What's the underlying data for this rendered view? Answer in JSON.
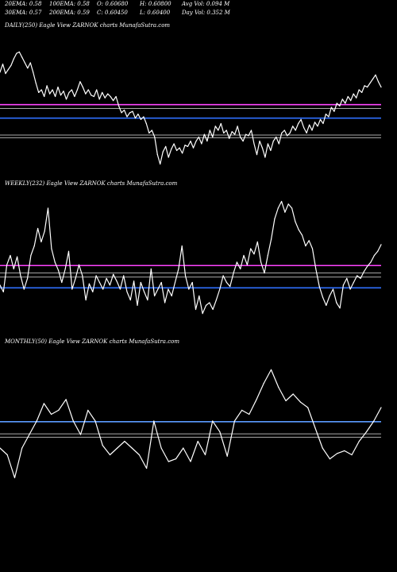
{
  "header": {
    "row1": [
      "20EMA: 0.58",
      "100EMA: 0.58",
      "O: 0.60680",
      "H: 0.60800",
      "Avg Vol: 0.094  M"
    ],
    "row2": [
      "30EMA: 0.57",
      "200EMA: 0.59",
      "C: 0.60450",
      "L: 0.60400",
      "Day Vol: 0.352  M"
    ]
  },
  "chart_data": [
    {
      "type": "line",
      "label": "DAILY(250) Eagle  View  ZARNOK charts MunafaSutra.com",
      "ylim": [
        0,
        1
      ],
      "line_color": "#ffffff",
      "reference_lines": [
        {
          "value": 0.49,
          "color": "#ff44ff"
        },
        {
          "value": 0.462,
          "color": "#aaaaaa"
        },
        {
          "value": 0.39,
          "color": "#2f6fff"
        },
        {
          "value": 0.265,
          "color": "#aaaaaa"
        },
        {
          "value": 0.245,
          "color": "#aaaaaa"
        }
      ],
      "values": [
        0.73,
        0.79,
        0.72,
        0.75,
        0.78,
        0.83,
        0.87,
        0.88,
        0.84,
        0.8,
        0.76,
        0.8,
        0.73,
        0.65,
        0.58,
        0.6,
        0.55,
        0.63,
        0.57,
        0.6,
        0.55,
        0.62,
        0.56,
        0.59,
        0.53,
        0.58,
        0.6,
        0.55,
        0.6,
        0.66,
        0.62,
        0.57,
        0.6,
        0.56,
        0.55,
        0.6,
        0.53,
        0.58,
        0.54,
        0.57,
        0.55,
        0.52,
        0.55,
        0.48,
        0.43,
        0.45,
        0.4,
        0.43,
        0.44,
        0.39,
        0.42,
        0.38,
        0.4,
        0.35,
        0.28,
        0.3,
        0.25,
        0.12,
        0.05,
        0.14,
        0.18,
        0.1,
        0.16,
        0.2,
        0.15,
        0.17,
        0.13,
        0.19,
        0.18,
        0.22,
        0.17,
        0.22,
        0.25,
        0.2,
        0.27,
        0.22,
        0.3,
        0.25,
        0.33,
        0.3,
        0.35,
        0.28,
        0.3,
        0.24,
        0.29,
        0.27,
        0.33,
        0.25,
        0.22,
        0.27,
        0.26,
        0.3,
        0.2,
        0.12,
        0.22,
        0.17,
        0.1,
        0.2,
        0.15,
        0.22,
        0.25,
        0.2,
        0.28,
        0.3,
        0.26,
        0.28,
        0.33,
        0.3,
        0.35,
        0.38,
        0.32,
        0.28,
        0.34,
        0.3,
        0.36,
        0.33,
        0.38,
        0.35,
        0.42,
        0.4,
        0.47,
        0.44,
        0.5,
        0.48,
        0.53,
        0.5,
        0.55,
        0.52,
        0.57,
        0.54,
        0.6,
        0.58,
        0.63,
        0.62,
        0.65,
        0.68,
        0.71,
        0.66,
        0.62
      ]
    },
    {
      "type": "line",
      "label": "WEEKLY(232) Eagle  View  ZARNOK charts MunafaSutra.com",
      "ylim": [
        0,
        1
      ],
      "line_color": "#ffffff",
      "reference_lines": [
        {
          "value": 0.475,
          "color": "#ff44ff"
        },
        {
          "value": 0.42,
          "color": "#aaaaaa"
        },
        {
          "value": 0.39,
          "color": "#aaaaaa"
        },
        {
          "value": 0.31,
          "color": "#2f6fff"
        }
      ],
      "values": [
        0.33,
        0.28,
        0.48,
        0.55,
        0.45,
        0.54,
        0.4,
        0.3,
        0.38,
        0.55,
        0.62,
        0.75,
        0.65,
        0.73,
        0.9,
        0.6,
        0.5,
        0.44,
        0.35,
        0.45,
        0.58,
        0.3,
        0.38,
        0.48,
        0.4,
        0.22,
        0.34,
        0.28,
        0.4,
        0.35,
        0.3,
        0.38,
        0.33,
        0.41,
        0.36,
        0.3,
        0.4,
        0.28,
        0.22,
        0.36,
        0.18,
        0.35,
        0.28,
        0.22,
        0.45,
        0.25,
        0.3,
        0.35,
        0.2,
        0.3,
        0.25,
        0.35,
        0.45,
        0.62,
        0.4,
        0.3,
        0.35,
        0.15,
        0.25,
        0.12,
        0.18,
        0.2,
        0.15,
        0.22,
        0.3,
        0.4,
        0.35,
        0.32,
        0.42,
        0.5,
        0.45,
        0.55,
        0.48,
        0.6,
        0.56,
        0.65,
        0.5,
        0.42,
        0.55,
        0.67,
        0.82,
        0.9,
        0.95,
        0.87,
        0.93,
        0.9,
        0.8,
        0.74,
        0.7,
        0.62,
        0.66,
        0.6,
        0.45,
        0.32,
        0.24,
        0.18,
        0.25,
        0.3,
        0.2,
        0.16,
        0.33,
        0.38,
        0.3,
        0.35,
        0.4,
        0.38,
        0.43,
        0.47,
        0.5,
        0.55,
        0.58,
        0.63
      ]
    },
    {
      "type": "line",
      "label": "MONTHLY(50) Eagle  View  ZARNOK charts MunafaSutra.com",
      "ylim": [
        0,
        1
      ],
      "line_color": "#ffffff",
      "reference_lines": [
        {
          "value": 0.495,
          "color": "#5b9bff"
        },
        {
          "value": 0.405,
          "color": "#aaaaaa"
        },
        {
          "value": 0.38,
          "color": "#aaaaaa"
        }
      ],
      "values": [
        0.3,
        0.25,
        0.08,
        0.3,
        0.4,
        0.5,
        0.63,
        0.55,
        0.58,
        0.66,
        0.5,
        0.4,
        0.58,
        0.5,
        0.32,
        0.25,
        0.3,
        0.35,
        0.3,
        0.25,
        0.15,
        0.5,
        0.3,
        0.2,
        0.22,
        0.3,
        0.2,
        0.35,
        0.25,
        0.5,
        0.42,
        0.24,
        0.5,
        0.58,
        0.55,
        0.66,
        0.78,
        0.88,
        0.75,
        0.65,
        0.7,
        0.64,
        0.6,
        0.45,
        0.3,
        0.22,
        0.26,
        0.28,
        0.25,
        0.35,
        0.42,
        0.5,
        0.6
      ]
    }
  ]
}
